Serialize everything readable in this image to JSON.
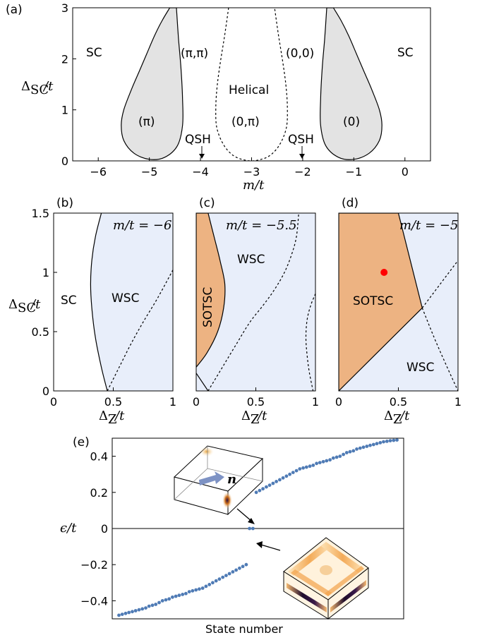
{
  "chart_data": [
    {
      "panel": "(a)",
      "type": "phase-diagram",
      "xlabel": "m/t",
      "ylabel": "ΔSC/t",
      "xlim": [
        -6.5,
        0.5
      ],
      "ylim": [
        0,
        3
      ],
      "xticks": [
        "−6",
        "−5",
        "−4",
        "−3",
        "−2",
        "−1",
        "0"
      ],
      "yticks": [
        "0",
        "1",
        "2",
        "3"
      ],
      "regions": [
        "SC",
        "(π)",
        "(π,π)",
        "Helical",
        "(0,π)",
        "(0,0)",
        "(0)",
        "SC"
      ],
      "annotations": [
        "QSH",
        "QSH"
      ],
      "boundaries": {
        "left_lobe": [
          [
            -4.6,
            3.0
          ],
          [
            -4.75,
            2.75
          ],
          [
            -4.9,
            2.45
          ],
          [
            -5.05,
            2.1
          ],
          [
            -5.2,
            1.75
          ],
          [
            -5.35,
            1.4
          ],
          [
            -5.5,
            1.0
          ],
          [
            -5.55,
            0.7
          ],
          [
            -5.5,
            0.4
          ],
          [
            -5.3,
            0.15
          ],
          [
            -5.0,
            0.03
          ],
          [
            -4.7,
            0.07
          ],
          [
            -4.45,
            0.3
          ],
          [
            -4.35,
            0.7
          ],
          [
            -4.35,
            1.2
          ],
          [
            -4.38,
            1.8
          ],
          [
            -4.43,
            2.4
          ],
          [
            -4.47,
            3.0
          ]
        ],
        "right_lobe": [
          [
            -1.53,
            3.0
          ],
          [
            -1.57,
            2.4
          ],
          [
            -1.62,
            1.8
          ],
          [
            -1.65,
            1.2
          ],
          [
            -1.65,
            0.7
          ],
          [
            -1.55,
            0.3
          ],
          [
            -1.3,
            0.07
          ],
          [
            -1.0,
            0.03
          ],
          [
            -0.7,
            0.15
          ],
          [
            -0.5,
            0.4
          ],
          [
            -0.45,
            0.7
          ],
          [
            -0.5,
            1.0
          ],
          [
            -0.65,
            1.4
          ],
          [
            -0.8,
            1.75
          ],
          [
            -0.95,
            2.1
          ],
          [
            -1.1,
            2.45
          ],
          [
            -1.25,
            2.75
          ],
          [
            -1.4,
            3.0
          ]
        ],
        "helical_dashed": [
          [
            -3.45,
            3.0
          ],
          [
            -3.52,
            2.5
          ],
          [
            -3.6,
            2.0
          ],
          [
            -3.67,
            1.5
          ],
          [
            -3.7,
            1.05
          ],
          [
            -3.68,
            0.65
          ],
          [
            -3.55,
            0.32
          ],
          [
            -3.35,
            0.1
          ],
          [
            -3.1,
            0.01
          ],
          [
            -2.9,
            0.01
          ],
          [
            -2.65,
            0.1
          ],
          [
            -2.45,
            0.32
          ],
          [
            -2.32,
            0.65
          ],
          [
            -2.3,
            1.05
          ],
          [
            -2.33,
            1.5
          ],
          [
            -2.4,
            2.0
          ],
          [
            -2.48,
            2.5
          ],
          [
            -2.55,
            3.0
          ]
        ]
      },
      "colors": {
        "sc": "#ffffff",
        "light": "#e3e3e3",
        "dark": "#c0c0c0"
      }
    },
    {
      "panel": "(b)",
      "type": "phase-diagram",
      "annotation": "m/t = −6",
      "xlabel": "ΔZ/t",
      "ylabel": "ΔSC/t",
      "xlim": [
        0,
        1
      ],
      "ylim": [
        0,
        1.5
      ],
      "xticks": [
        "0",
        "0.5",
        "1"
      ],
      "yticks": [
        "0",
        "0.5",
        "1",
        "1.5"
      ],
      "regions": [
        "SC",
        "WSC"
      ],
      "boundaries": {
        "solid": [
          [
            0.4,
            1.5
          ],
          [
            0.35,
            1.3
          ],
          [
            0.32,
            1.1
          ],
          [
            0.31,
            0.9
          ],
          [
            0.32,
            0.7
          ],
          [
            0.35,
            0.45
          ],
          [
            0.4,
            0.2
          ],
          [
            0.45,
            0.0
          ]
        ],
        "dashed": [
          [
            0.45,
            0.0
          ],
          [
            0.55,
            0.2
          ],
          [
            0.65,
            0.4
          ],
          [
            0.75,
            0.58
          ],
          [
            0.87,
            0.78
          ],
          [
            1.0,
            1.02
          ]
        ]
      },
      "colors": {
        "sc": "#ffffff",
        "wsc": "#e8eefa"
      }
    },
    {
      "panel": "(c)",
      "type": "phase-diagram",
      "annotation": "m/t = −5.5",
      "xlabel": "ΔZ/t",
      "xlim": [
        0,
        1
      ],
      "ylim": [
        0,
        1.5
      ],
      "xticks": [
        "0",
        "0.5",
        "1"
      ],
      "regions": [
        "SOTSC",
        "WSC"
      ],
      "boundaries": {
        "sotsc": [
          [
            0.0,
            1.5
          ],
          [
            0.1,
            1.5
          ],
          [
            0.15,
            1.3
          ],
          [
            0.2,
            1.1
          ],
          [
            0.24,
            0.9
          ],
          [
            0.23,
            0.7
          ],
          [
            0.18,
            0.5
          ],
          [
            0.09,
            0.32
          ],
          [
            0.0,
            0.2
          ],
          [
            0.0,
            0.15
          ],
          [
            0.1,
            0.0
          ]
        ],
        "dashed1": [
          [
            0.1,
            0.0
          ],
          [
            0.22,
            0.2
          ],
          [
            0.34,
            0.4
          ],
          [
            0.45,
            0.58
          ],
          [
            0.56,
            0.72
          ],
          [
            0.66,
            0.86
          ],
          [
            0.74,
            1.0
          ],
          [
            0.8,
            1.15
          ],
          [
            0.84,
            1.3
          ],
          [
            0.86,
            1.5
          ]
        ],
        "dashed2": [
          [
            1.0,
            0.82
          ],
          [
            0.96,
            0.72
          ],
          [
            0.93,
            0.6
          ],
          [
            0.92,
            0.45
          ],
          [
            0.93,
            0.3
          ],
          [
            0.95,
            0.15
          ],
          [
            0.98,
            0.0
          ]
        ]
      },
      "colors": {
        "sotsc": "#edb382",
        "wsc": "#e8eefa"
      }
    },
    {
      "panel": "(d)",
      "type": "phase-diagram",
      "annotation": "m/t = −5",
      "xlabel": "ΔZ/t",
      "xlim": [
        0,
        1
      ],
      "ylim": [
        0,
        1.5
      ],
      "xticks": [
        "0",
        "0.5",
        "1"
      ],
      "regions": [
        "SOTSC",
        "WSC"
      ],
      "marker": {
        "x": 0.38,
        "y": 1.0,
        "color": "#ff0000"
      },
      "boundaries": {
        "sotsc": [
          [
            0.0,
            1.5
          ],
          [
            0.5,
            1.5
          ],
          [
            0.7,
            0.7
          ],
          [
            0.0,
            0.0
          ]
        ],
        "dashed": [
          [
            0.7,
            0.7
          ],
          [
            0.85,
            0.9
          ],
          [
            1.0,
            1.1
          ]
        ],
        "dashed_lower": [
          [
            0.7,
            0.7
          ],
          [
            0.8,
            0.45
          ],
          [
            0.9,
            0.22
          ],
          [
            1.0,
            0.0
          ]
        ]
      },
      "colors": {
        "sotsc": "#edb382",
        "wsc": "#e8eefa"
      }
    },
    {
      "panel": "(e)",
      "type": "scatter",
      "xlabel": "State number",
      "ylabel": "ϵ/t",
      "ylim": [
        -0.5,
        0.5
      ],
      "yticks": [
        "−0.4",
        "−0.2",
        "0",
        "0.2",
        "0.4"
      ],
      "color": "#4f7bb5",
      "inset_label": "n",
      "series": [
        {
          "name": "",
          "x": [
            1,
            2,
            3,
            4,
            5,
            6,
            7,
            8,
            9,
            10,
            11,
            12,
            13,
            14,
            15,
            16,
            17,
            18,
            19,
            20,
            21,
            22,
            23,
            24,
            25,
            26,
            27,
            28,
            29,
            30,
            31,
            32,
            33,
            34,
            35,
            36,
            37,
            38,
            39,
            40,
            41,
            42,
            43,
            44,
            45,
            46,
            47,
            48,
            49,
            50,
            51,
            52,
            53,
            54,
            55,
            56,
            57,
            58,
            59,
            60,
            61,
            62,
            63,
            64,
            65,
            66,
            67,
            68,
            69,
            70,
            71,
            72,
            73,
            74,
            75,
            76,
            77,
            78,
            79,
            80,
            81,
            82,
            83,
            84
          ],
          "y": [
            -0.48,
            -0.475,
            -0.47,
            -0.465,
            -0.46,
            -0.455,
            -0.45,
            -0.445,
            -0.44,
            -0.43,
            -0.425,
            -0.42,
            -0.41,
            -0.4,
            -0.395,
            -0.39,
            -0.38,
            -0.375,
            -0.37,
            -0.365,
            -0.36,
            -0.35,
            -0.345,
            -0.34,
            -0.335,
            -0.33,
            -0.32,
            -0.31,
            -0.3,
            -0.29,
            -0.28,
            -0.27,
            -0.26,
            -0.25,
            -0.24,
            -0.23,
            -0.22,
            -0.21,
            -0.2,
            0.0,
            0.0,
            0.2,
            0.21,
            0.22,
            0.23,
            0.24,
            0.25,
            0.26,
            0.27,
            0.28,
            0.29,
            0.3,
            0.31,
            0.32,
            0.33,
            0.335,
            0.34,
            0.345,
            0.35,
            0.36,
            0.365,
            0.37,
            0.375,
            0.38,
            0.39,
            0.395,
            0.4,
            0.41,
            0.42,
            0.425,
            0.43,
            0.44,
            0.445,
            0.45,
            0.455,
            0.46,
            0.465,
            0.47,
            0.475,
            0.48,
            0.483,
            0.486,
            0.488,
            0.49
          ]
        }
      ]
    }
  ]
}
